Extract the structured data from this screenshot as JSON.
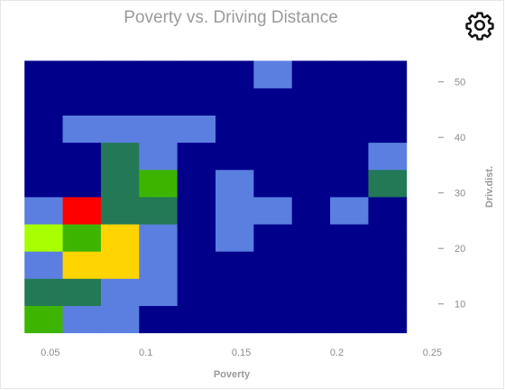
{
  "chart_data": {
    "type": "heatmap",
    "title": "Poverty vs. Driving Distance",
    "xlabel": "Poverty",
    "ylabel": "Driv.dist.",
    "xlim": [
      0.035,
      0.255
    ],
    "ylim": [
      4.1,
      54.5
    ],
    "xticks": [
      0.05,
      0.1,
      0.15,
      0.2,
      0.25
    ],
    "xtick_labels": [
      "0.05",
      "0.1",
      "0.15",
      "0.2",
      "0.25"
    ],
    "yticks": [
      10,
      20,
      30,
      40,
      50
    ],
    "ytick_labels": [
      "10",
      "20",
      "30",
      "40",
      "50"
    ],
    "y_axis_side": "right",
    "grid": false,
    "x_bin_edges": [
      0.0365,
      0.0565,
      0.0765,
      0.0965,
      0.1165,
      0.1365,
      0.1565,
      0.1765,
      0.1965,
      0.2165,
      0.2365
    ],
    "y_bin_edges": [
      4.8,
      9.7,
      14.6,
      19.5,
      24.4,
      29.3,
      34.2,
      39.1,
      44.0,
      48.9,
      53.8
    ],
    "color_levels": [
      "#00008b",
      "#5b7fe0",
      "#237856",
      "#3db500",
      "#a8ff00",
      "#ffd400",
      "#ff0000"
    ],
    "cells": [
      [
        3,
        1,
        1,
        0,
        0,
        0,
        0,
        0,
        0,
        0
      ],
      [
        2,
        2,
        1,
        1,
        0,
        0,
        0,
        0,
        0,
        0
      ],
      [
        1,
        5,
        5,
        1,
        0,
        0,
        0,
        0,
        0,
        0
      ],
      [
        4,
        3,
        5,
        1,
        0,
        1,
        0,
        0,
        0,
        0
      ],
      [
        1,
        6,
        2,
        2,
        0,
        1,
        1,
        0,
        1,
        0
      ],
      [
        0,
        0,
        2,
        3,
        0,
        1,
        0,
        0,
        0,
        2
      ],
      [
        0,
        0,
        2,
        1,
        0,
        0,
        0,
        0,
        0,
        1
      ],
      [
        0,
        1,
        1,
        1,
        1,
        0,
        0,
        0,
        0,
        0
      ],
      [
        0,
        0,
        0,
        0,
        0,
        0,
        0,
        0,
        0,
        0
      ],
      [
        0,
        0,
        0,
        0,
        0,
        0,
        1,
        0,
        0,
        0
      ]
    ]
  },
  "toolbar": {
    "settings_icon": "gear-icon"
  }
}
